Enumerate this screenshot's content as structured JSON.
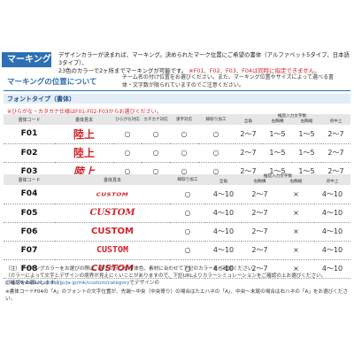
{
  "header": {
    "badge": "マーキング",
    "intro_line1": "デザインカラーが決まれば、マーキング。決められたマーク位置にご希望の書体（アルファベット5タイプ、日本語3タイプ）、",
    "intro_line2_a": "23色のカラーで2ヶ所までマーキングが可能です。",
    "intro_line2_b": "※F01、F02、F03、F04は同時に指定できません。"
  },
  "section": {
    "title": "マーキングの位置について",
    "desc": "チーム名の付け位置をお選びください。また、マーキング位置やサイズによって選べる書体・文字数が限られていますのでご注意ください。"
  },
  "font_band": "フォントタイプ（書体）",
  "red_note": "※ひらがな・カタカナ仕様はF01-F02-F03からお選びください。",
  "table1": {
    "headers": [
      "書体コード",
      "書体見本",
      "ひらがな対応",
      "カタカナ対応",
      "漢字対応",
      "縁取り加工",
      "全角",
      "右胸横",
      "右胸縦",
      "背中上"
    ],
    "group_header": "推奨入力文字数",
    "rows": [
      {
        "code": "F01",
        "sample": "陸上",
        "hira": "○",
        "kata": "○",
        "kanji": "○",
        "edge": "○",
        "zen": "2〜7",
        "r1": "1〜5",
        "r2": "1〜5",
        "back": "2〜7"
      },
      {
        "code": "F02",
        "sample": "陸上",
        "hira": "○",
        "kata": "○",
        "kanji": "○",
        "edge": "○",
        "zen": "2〜7",
        "r1": "1〜5",
        "r2": "1〜5",
        "back": "2〜7"
      },
      {
        "code": "F03",
        "sample": "陸上",
        "hira": "○",
        "kata": "○",
        "kanji": "○",
        "edge": "○",
        "zen": "2〜7",
        "r1": "1〜5",
        "r2": "1〜5",
        "back": "2〜7"
      }
    ]
  },
  "table2": {
    "headers": [
      "書体コード",
      "書体見本",
      "縁取り加工",
      "全角",
      "右胸横",
      "右胸縦",
      "背中上"
    ],
    "group_header": "推奨入力文字数",
    "rows": [
      {
        "code": "F04",
        "sample": "CUSTOM",
        "edge": "○",
        "zen": "4〜10",
        "r1": "2〜7",
        "r2": "×",
        "back": "4〜10"
      },
      {
        "code": "F05",
        "sample": "CUSTOM",
        "edge": "○",
        "zen": "4〜10",
        "r1": "2〜7",
        "r2": "×",
        "back": "4〜10"
      },
      {
        "code": "F06",
        "sample": "CUSTOM",
        "edge": "○",
        "zen": "4〜10",
        "r1": "2〜7",
        "r2": "×",
        "back": "4〜10"
      },
      {
        "code": "F07",
        "sample": "CUSTOM",
        "edge": "○",
        "zen": "4〜10",
        "r1": "2〜7",
        "r2": "×",
        "back": "4〜10"
      },
      {
        "code": "F08",
        "sample": "CUSTOM",
        "edge": "○",
        "zen": "4〜10",
        "r1": "2〜7",
        "r2": "×",
        "back": "4〜10"
      }
    ]
  },
  "footer": {
    "line1": "（注）マーキングカラーをお選びの際は、各デザインの本体色、素材に合わせて下記のカラーをご確認ください。",
    "line2_a": "（カラーによって文字とデザインの境界が見えにくいことがありますので、",
    "line2_b": "下記URLよりカラーシミュレーションをご確認の上お選びください。",
    "url": "http://www.asics.com/jp/ja-jp/mk/custom/category",
    "line2_c": "でデザインの",
    "line3": "ご確認をお願いします。）",
    "line4": "※書体コードF04の「A」のフォントの文字位置が、先端〜中央（中央寄り）の場合はたエハネの「A」、中央〜末尾の場合は右ハネの「A」をお選びください。"
  },
  "colors": {
    "accent": "#2c6fb4",
    "red": "#d2232a",
    "band": "#e2edf7",
    "head_gray": "#e6e6e6"
  }
}
